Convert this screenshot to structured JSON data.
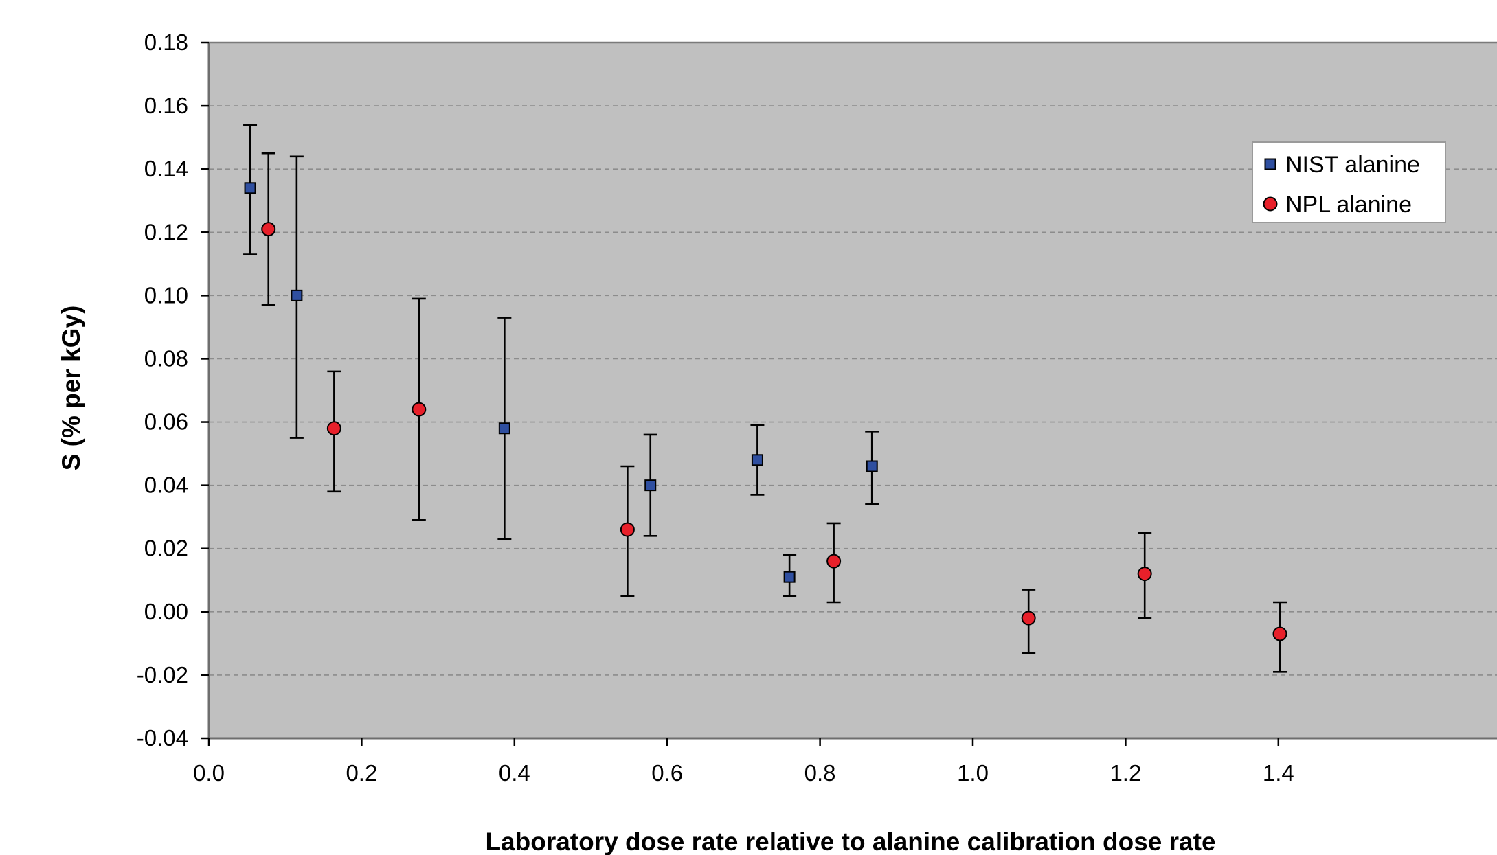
{
  "chart_data": {
    "type": "scatter",
    "xlabel": "Laboratory dose rate relative to alanine calibration dose rate",
    "ylabel": "S (% per kGy)",
    "xlim": [
      0.0,
      1.5
    ],
    "ylim": [
      -0.04,
      0.18
    ],
    "x_ticks": [
      "0.0",
      "0.2",
      "0.4",
      "0.6",
      "0.8",
      "1.0",
      "1.2",
      "1.4"
    ],
    "x_tick_values": [
      0.0,
      0.2,
      0.4,
      0.6,
      0.8,
      1.0,
      1.2,
      1.4
    ],
    "y_ticks": [
      "0.18",
      "0.16",
      "0.14",
      "0.12",
      "0.10",
      "0.08",
      "0.06",
      "0.04",
      "0.02",
      "0.00",
      "-0.02",
      "-0.04"
    ],
    "y_tick_values": [
      0.18,
      0.16,
      0.14,
      0.12,
      0.1,
      0.08,
      0.06,
      0.04,
      0.02,
      0.0,
      -0.02,
      -0.04
    ],
    "grid": "horizontal dashed",
    "legend_position": "top-right",
    "plot_background": "#c0c0c0",
    "series": [
      {
        "name": "NIST alanine",
        "marker": "square",
        "color": "#2f4fa0",
        "points": [
          {
            "x": 0.054,
            "y": 0.134,
            "ylow": 0.113,
            "yhigh": 0.154
          },
          {
            "x": 0.115,
            "y": 0.1,
            "ylow": 0.055,
            "yhigh": 0.144
          },
          {
            "x": 0.387,
            "y": 0.058,
            "ylow": 0.023,
            "yhigh": 0.093
          },
          {
            "x": 0.578,
            "y": 0.04,
            "ylow": 0.024,
            "yhigh": 0.056
          },
          {
            "x": 0.718,
            "y": 0.048,
            "ylow": 0.037,
            "yhigh": 0.059
          },
          {
            "x": 0.76,
            "y": 0.011,
            "ylow": 0.005,
            "yhigh": 0.018
          },
          {
            "x": 0.868,
            "y": 0.046,
            "ylow": 0.034,
            "yhigh": 0.057
          }
        ]
      },
      {
        "name": "NPL alanine",
        "marker": "circle",
        "color": "#e8202a",
        "points": [
          {
            "x": 0.078,
            "y": 0.121,
            "ylow": 0.097,
            "yhigh": 0.145
          },
          {
            "x": 0.164,
            "y": 0.058,
            "ylow": 0.038,
            "yhigh": 0.076
          },
          {
            "x": 0.275,
            "y": 0.064,
            "ylow": 0.029,
            "yhigh": 0.099
          },
          {
            "x": 0.548,
            "y": 0.026,
            "ylow": 0.005,
            "yhigh": 0.046
          },
          {
            "x": 0.818,
            "y": 0.016,
            "ylow": 0.003,
            "yhigh": 0.028
          },
          {
            "x": 1.073,
            "y": -0.002,
            "ylow": -0.013,
            "yhigh": 0.007
          },
          {
            "x": 1.225,
            "y": 0.012,
            "ylow": -0.002,
            "yhigh": 0.025
          },
          {
            "x": 1.402,
            "y": -0.007,
            "ylow": -0.019,
            "yhigh": 0.003
          }
        ]
      }
    ]
  }
}
